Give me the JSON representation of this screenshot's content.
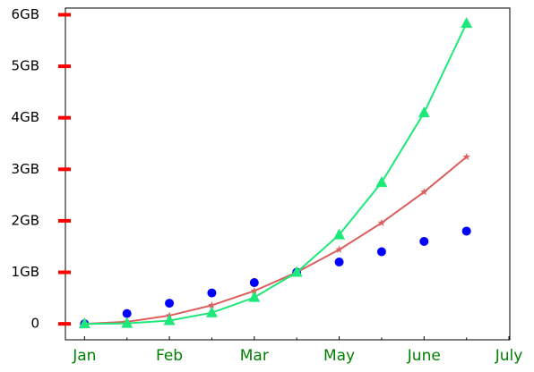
{
  "chart_data": {
    "type": "line",
    "x": [
      0,
      1,
      2,
      3,
      4,
      5,
      6,
      7,
      8,
      9
    ],
    "series": [
      {
        "type": "scatter",
        "color": "#0000ff",
        "marker": "circle",
        "values": [
          0,
          0.2,
          0.4,
          0.6,
          0.8,
          1.0,
          1.2,
          1.4,
          1.6,
          1.8
        ]
      },
      {
        "type": "line",
        "color": "#db5f5f",
        "marker": "star",
        "values": [
          0,
          0.04,
          0.16,
          0.36,
          0.64,
          1.0,
          1.44,
          1.96,
          2.56,
          3.24
        ]
      },
      {
        "type": "line",
        "color": "#1de87a",
        "marker": "triangle",
        "values": [
          0,
          0.008,
          0.064,
          0.216,
          0.512,
          1.0,
          1.728,
          2.744,
          4.096,
          5.832
        ]
      }
    ],
    "xlim": [
      -0.45,
      10.02
    ],
    "ylim": [
      -0.31,
      6.13
    ],
    "xticks": [
      {
        "value": 0,
        "label": "Jan"
      },
      {
        "value": 2,
        "label": "Feb"
      },
      {
        "value": 4,
        "label": "Mar"
      },
      {
        "value": 6,
        "label": "May"
      },
      {
        "value": 8,
        "label": "June"
      },
      {
        "value": 10,
        "label": "July"
      }
    ],
    "xminorticks": [
      1,
      3,
      5,
      7,
      9
    ],
    "yticks": [
      0,
      {
        "value": 1,
        "label": "1GB"
      },
      {
        "value": 2,
        "label": "2GB"
      },
      {
        "value": 3,
        "label": "3GB"
      },
      {
        "value": 4,
        "label": "4GB"
      },
      {
        "value": 5,
        "label": "5GB"
      },
      {
        "value": 6,
        "label": "6GB"
      }
    ],
    "ytick_color": "#ff0000"
  }
}
